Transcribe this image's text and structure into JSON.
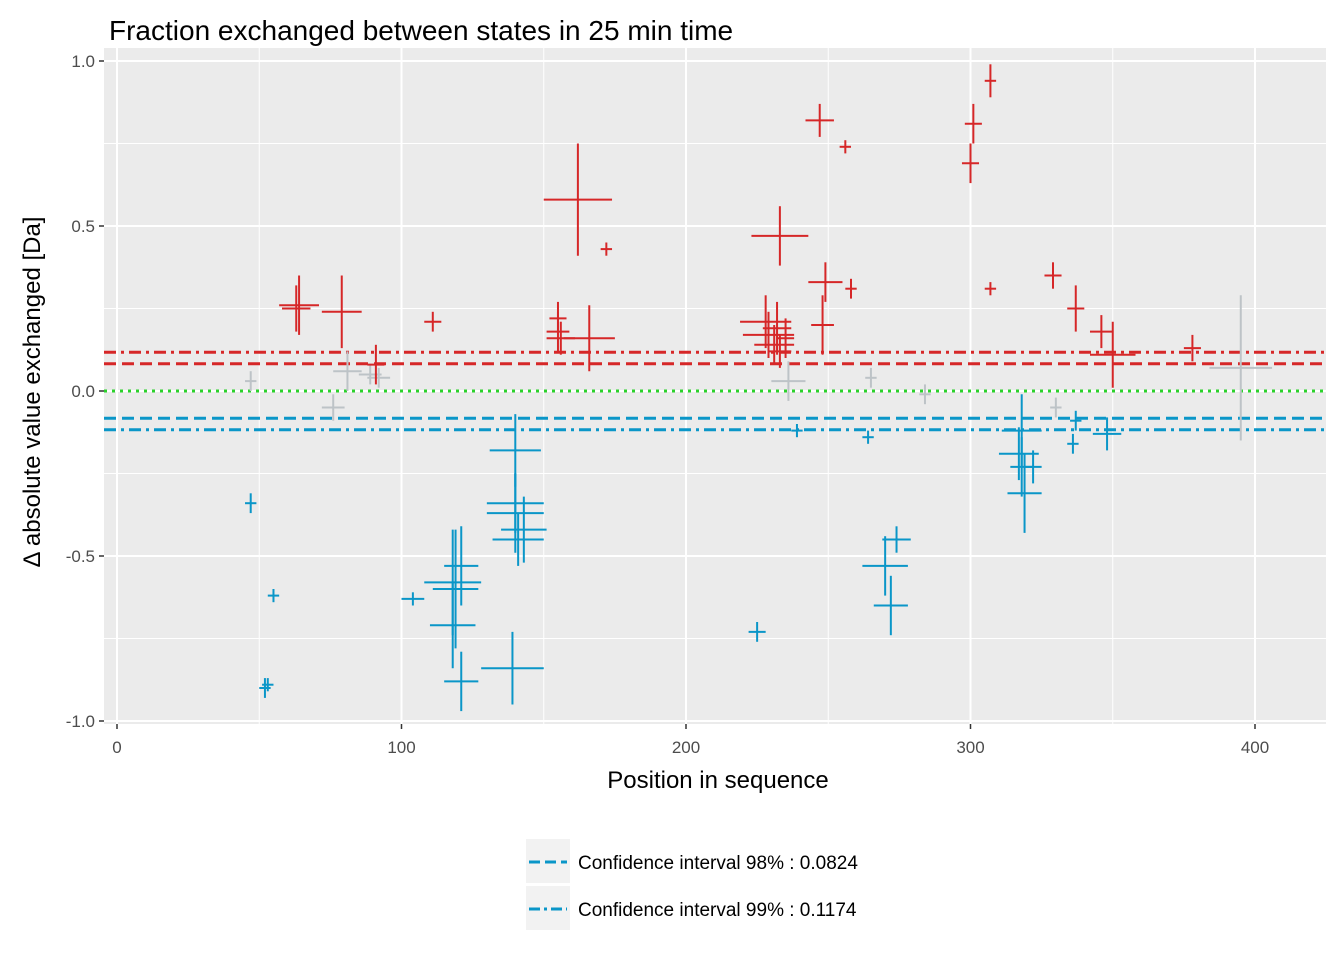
{
  "chart_data": {
    "type": "scatter",
    "title": "Fraction exchanged between states in 25 min time",
    "xlabel": "Position in sequence",
    "ylabel": "Δ absolute value exchanged [Da]",
    "xlim": [
      -2,
      425
    ],
    "ylim": [
      -1.0,
      1.0
    ],
    "xticks": [
      0,
      100,
      200,
      300,
      400
    ],
    "xtick_labels": [
      "0",
      "100",
      "200",
      "300",
      "400"
    ],
    "yticks": [
      -1.0,
      -0.5,
      0.0,
      0.5,
      1.0
    ],
    "ytick_labels": [
      "-1.0",
      "-0.5",
      "0.0",
      "0.5",
      "1.0"
    ],
    "grid": true,
    "legend_position": "bottom",
    "colors": {
      "positive": "#d62728",
      "negative": "#0a96c8",
      "insignificant": "#bdc3c7",
      "zero_line": "#2bd12b",
      "ci_negative": "#0a96c8",
      "background": "#ebebeb",
      "grid": "#ffffff"
    },
    "reference_lines": [
      {
        "y": 0.1174,
        "style": "dashdot",
        "color": "#d62728"
      },
      {
        "y": 0.0824,
        "style": "dashed",
        "color": "#d62728"
      },
      {
        "y": 0.0,
        "style": "dotted",
        "color": "#2bd12b"
      },
      {
        "y": -0.0824,
        "style": "dashed",
        "color": "#0a96c8"
      },
      {
        "y": -0.1174,
        "style": "dashdot",
        "color": "#0a96c8"
      }
    ],
    "legend": [
      {
        "label": "Confidence interval 98% : 0.0824",
        "style": "dashed",
        "color": "#0a96c8"
      },
      {
        "label": "Confidence interval 99% : 0.1174",
        "style": "dashdot",
        "color": "#0a96c8"
      }
    ],
    "series": [
      {
        "group": "positive",
        "points": [
          {
            "x": 64,
            "y": 0.26,
            "xerr": 7,
            "yerr": 0.09
          },
          {
            "x": 63,
            "y": 0.25,
            "xerr": 5,
            "yerr": 0.07
          },
          {
            "x": 79,
            "y": 0.24,
            "xerr": 7,
            "yerr": 0.11
          },
          {
            "x": 91,
            "y": 0.08,
            "xerr": 3,
            "yerr": 0.06
          },
          {
            "x": 111,
            "y": 0.21,
            "xerr": 3,
            "yerr": 0.03
          },
          {
            "x": 155,
            "y": 0.18,
            "xerr": 4,
            "yerr": 0.06
          },
          {
            "x": 155,
            "y": 0.22,
            "xerr": 3,
            "yerr": 0.05
          },
          {
            "x": 156,
            "y": 0.16,
            "xerr": 5,
            "yerr": 0.05
          },
          {
            "x": 162,
            "y": 0.58,
            "xerr": 12,
            "yerr": 0.17
          },
          {
            "x": 166,
            "y": 0.16,
            "xerr": 9,
            "yerr": 0.1
          },
          {
            "x": 172,
            "y": 0.43,
            "xerr": 2,
            "yerr": 0.02
          },
          {
            "x": 233,
            "y": 0.47,
            "xerr": 10,
            "yerr": 0.09
          },
          {
            "x": 228,
            "y": 0.21,
            "xerr": 9,
            "yerr": 0.08
          },
          {
            "x": 229,
            "y": 0.17,
            "xerr": 9,
            "yerr": 0.07
          },
          {
            "x": 231,
            "y": 0.14,
            "xerr": 7,
            "yerr": 0.06
          },
          {
            "x": 232,
            "y": 0.19,
            "xerr": 5,
            "yerr": 0.08
          },
          {
            "x": 233,
            "y": 0.12,
            "xerr": 4,
            "yerr": 0.05
          },
          {
            "x": 235,
            "y": 0.16,
            "xerr": 3,
            "yerr": 0.06
          },
          {
            "x": 247,
            "y": 0.82,
            "xerr": 5,
            "yerr": 0.05
          },
          {
            "x": 249,
            "y": 0.33,
            "xerr": 6,
            "yerr": 0.06
          },
          {
            "x": 248,
            "y": 0.2,
            "xerr": 4,
            "yerr": 0.09
          },
          {
            "x": 256,
            "y": 0.74,
            "xerr": 2,
            "yerr": 0.02
          },
          {
            "x": 258,
            "y": 0.31,
            "xerr": 2,
            "yerr": 0.03
          },
          {
            "x": 300,
            "y": 0.69,
            "xerr": 3,
            "yerr": 0.06
          },
          {
            "x": 301,
            "y": 0.81,
            "xerr": 3,
            "yerr": 0.06
          },
          {
            "x": 307,
            "y": 0.94,
            "xerr": 2,
            "yerr": 0.05
          },
          {
            "x": 307,
            "y": 0.31,
            "xerr": 2,
            "yerr": 0.02
          },
          {
            "x": 329,
            "y": 0.35,
            "xerr": 3,
            "yerr": 0.04
          },
          {
            "x": 337,
            "y": 0.25,
            "xerr": 3,
            "yerr": 0.07
          },
          {
            "x": 346,
            "y": 0.18,
            "xerr": 4,
            "yerr": 0.05
          },
          {
            "x": 350,
            "y": 0.11,
            "xerr": 8,
            "yerr": 0.1
          },
          {
            "x": 378,
            "y": 0.13,
            "xerr": 3,
            "yerr": 0.04
          }
        ]
      },
      {
        "group": "negative",
        "points": [
          {
            "x": 47,
            "y": -0.34,
            "xerr": 2,
            "yerr": 0.03
          },
          {
            "x": 55,
            "y": -0.62,
            "xerr": 2,
            "yerr": 0.02
          },
          {
            "x": 52,
            "y": -0.9,
            "xerr": 2,
            "yerr": 0.03
          },
          {
            "x": 53,
            "y": -0.89,
            "xerr": 2,
            "yerr": 0.02
          },
          {
            "x": 104,
            "y": -0.63,
            "xerr": 4,
            "yerr": 0.02
          },
          {
            "x": 118,
            "y": -0.58,
            "xerr": 10,
            "yerr": 0.16
          },
          {
            "x": 119,
            "y": -0.6,
            "xerr": 8,
            "yerr": 0.18
          },
          {
            "x": 118,
            "y": -0.71,
            "xerr": 8,
            "yerr": 0.13
          },
          {
            "x": 121,
            "y": -0.53,
            "xerr": 6,
            "yerr": 0.12
          },
          {
            "x": 121,
            "y": -0.88,
            "xerr": 6,
            "yerr": 0.09
          },
          {
            "x": 139,
            "y": -0.84,
            "xerr": 11,
            "yerr": 0.11
          },
          {
            "x": 140,
            "y": -0.37,
            "xerr": 10,
            "yerr": 0.12
          },
          {
            "x": 140,
            "y": -0.34,
            "xerr": 10,
            "yerr": 0.09
          },
          {
            "x": 140,
            "y": -0.18,
            "xerr": 9,
            "yerr": 0.11
          },
          {
            "x": 141,
            "y": -0.45,
            "xerr": 9,
            "yerr": 0.08
          },
          {
            "x": 143,
            "y": -0.42,
            "xerr": 8,
            "yerr": 0.1
          },
          {
            "x": 225,
            "y": -0.73,
            "xerr": 3,
            "yerr": 0.03
          },
          {
            "x": 239,
            "y": -0.12,
            "xerr": 2,
            "yerr": 0.02
          },
          {
            "x": 264,
            "y": -0.14,
            "xerr": 2,
            "yerr": 0.02
          },
          {
            "x": 270,
            "y": -0.53,
            "xerr": 8,
            "yerr": 0.09
          },
          {
            "x": 272,
            "y": -0.65,
            "xerr": 6,
            "yerr": 0.09
          },
          {
            "x": 274,
            "y": -0.45,
            "xerr": 5,
            "yerr": 0.04
          },
          {
            "x": 318,
            "y": -0.12,
            "xerr": 7,
            "yerr": 0.11
          },
          {
            "x": 317,
            "y": -0.19,
            "xerr": 7,
            "yerr": 0.08
          },
          {
            "x": 318,
            "y": -0.23,
            "xerr": 4,
            "yerr": 0.09
          },
          {
            "x": 319,
            "y": -0.31,
            "xerr": 6,
            "yerr": 0.12
          },
          {
            "x": 322,
            "y": -0.23,
            "xerr": 3,
            "yerr": 0.05
          },
          {
            "x": 336,
            "y": -0.16,
            "xerr": 2,
            "yerr": 0.03
          },
          {
            "x": 337,
            "y": -0.09,
            "xerr": 2,
            "yerr": 0.03
          },
          {
            "x": 348,
            "y": -0.13,
            "xerr": 5,
            "yerr": 0.05
          }
        ]
      },
      {
        "group": "insignificant",
        "points": [
          {
            "x": 47,
            "y": 0.03,
            "xerr": 2,
            "yerr": 0.03
          },
          {
            "x": 76,
            "y": -0.05,
            "xerr": 4,
            "yerr": 0.04
          },
          {
            "x": 81,
            "y": 0.06,
            "xerr": 5,
            "yerr": 0.06
          },
          {
            "x": 89,
            "y": 0.05,
            "xerr": 4,
            "yerr": 0.03
          },
          {
            "x": 92,
            "y": 0.04,
            "xerr": 4,
            "yerr": 0.03
          },
          {
            "x": 236,
            "y": 0.03,
            "xerr": 6,
            "yerr": 0.06
          },
          {
            "x": 265,
            "y": 0.04,
            "xerr": 2,
            "yerr": 0.03
          },
          {
            "x": 284,
            "y": -0.01,
            "xerr": 2,
            "yerr": 0.03
          },
          {
            "x": 330,
            "y": -0.05,
            "xerr": 2,
            "yerr": 0.03
          },
          {
            "x": 395,
            "y": 0.07,
            "xerr": 11,
            "yerr": 0.22
          }
        ]
      }
    ]
  }
}
